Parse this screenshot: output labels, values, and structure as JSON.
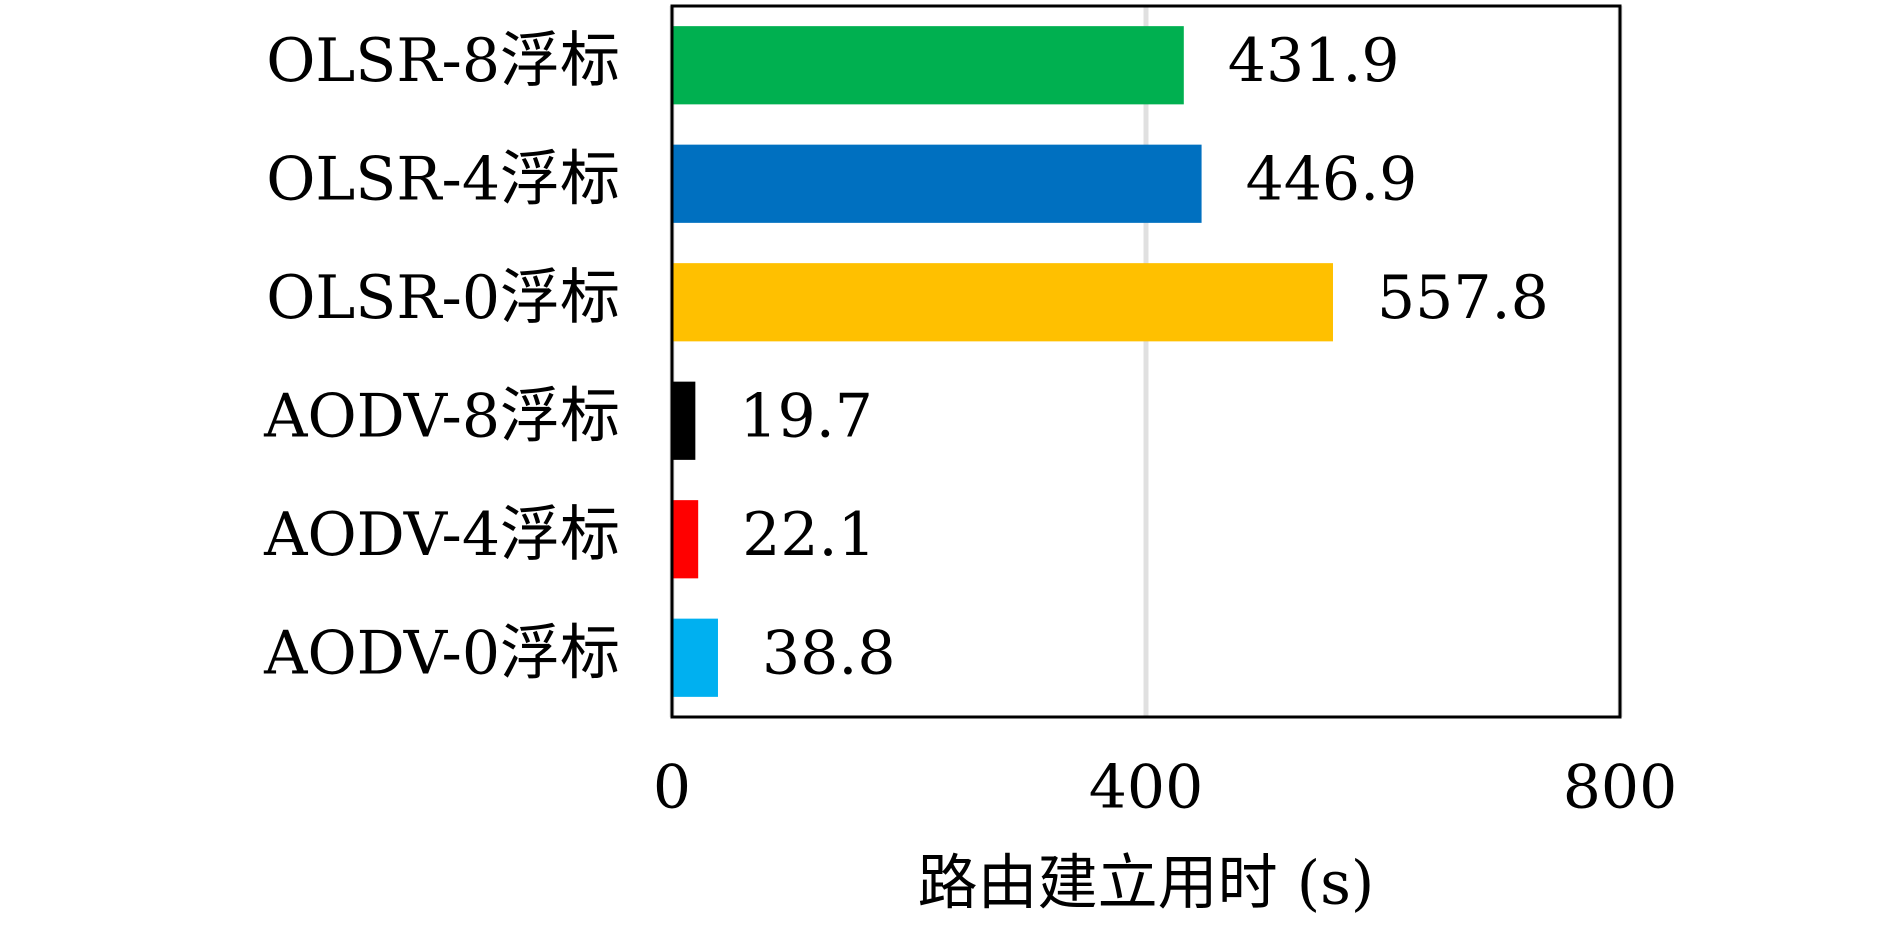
{
  "chart_data": {
    "type": "barh",
    "categories": [
      "OLSR-8浮标",
      "OLSR-4浮标",
      "OLSR-0浮标",
      "AODV-8浮标",
      "AODV-4浮标",
      "AODV-0浮标"
    ],
    "values": [
      431.9,
      446.9,
      557.8,
      19.7,
      22.1,
      38.8
    ],
    "colors": [
      "#00b050",
      "#0070c0",
      "#ffc000",
      "#000000",
      "#ff0000",
      "#00b0f0"
    ],
    "xlabel": "路由建立用时 (s)",
    "xlim": [
      0,
      800
    ],
    "xticks": [
      0,
      400,
      800
    ],
    "grid": true
  }
}
